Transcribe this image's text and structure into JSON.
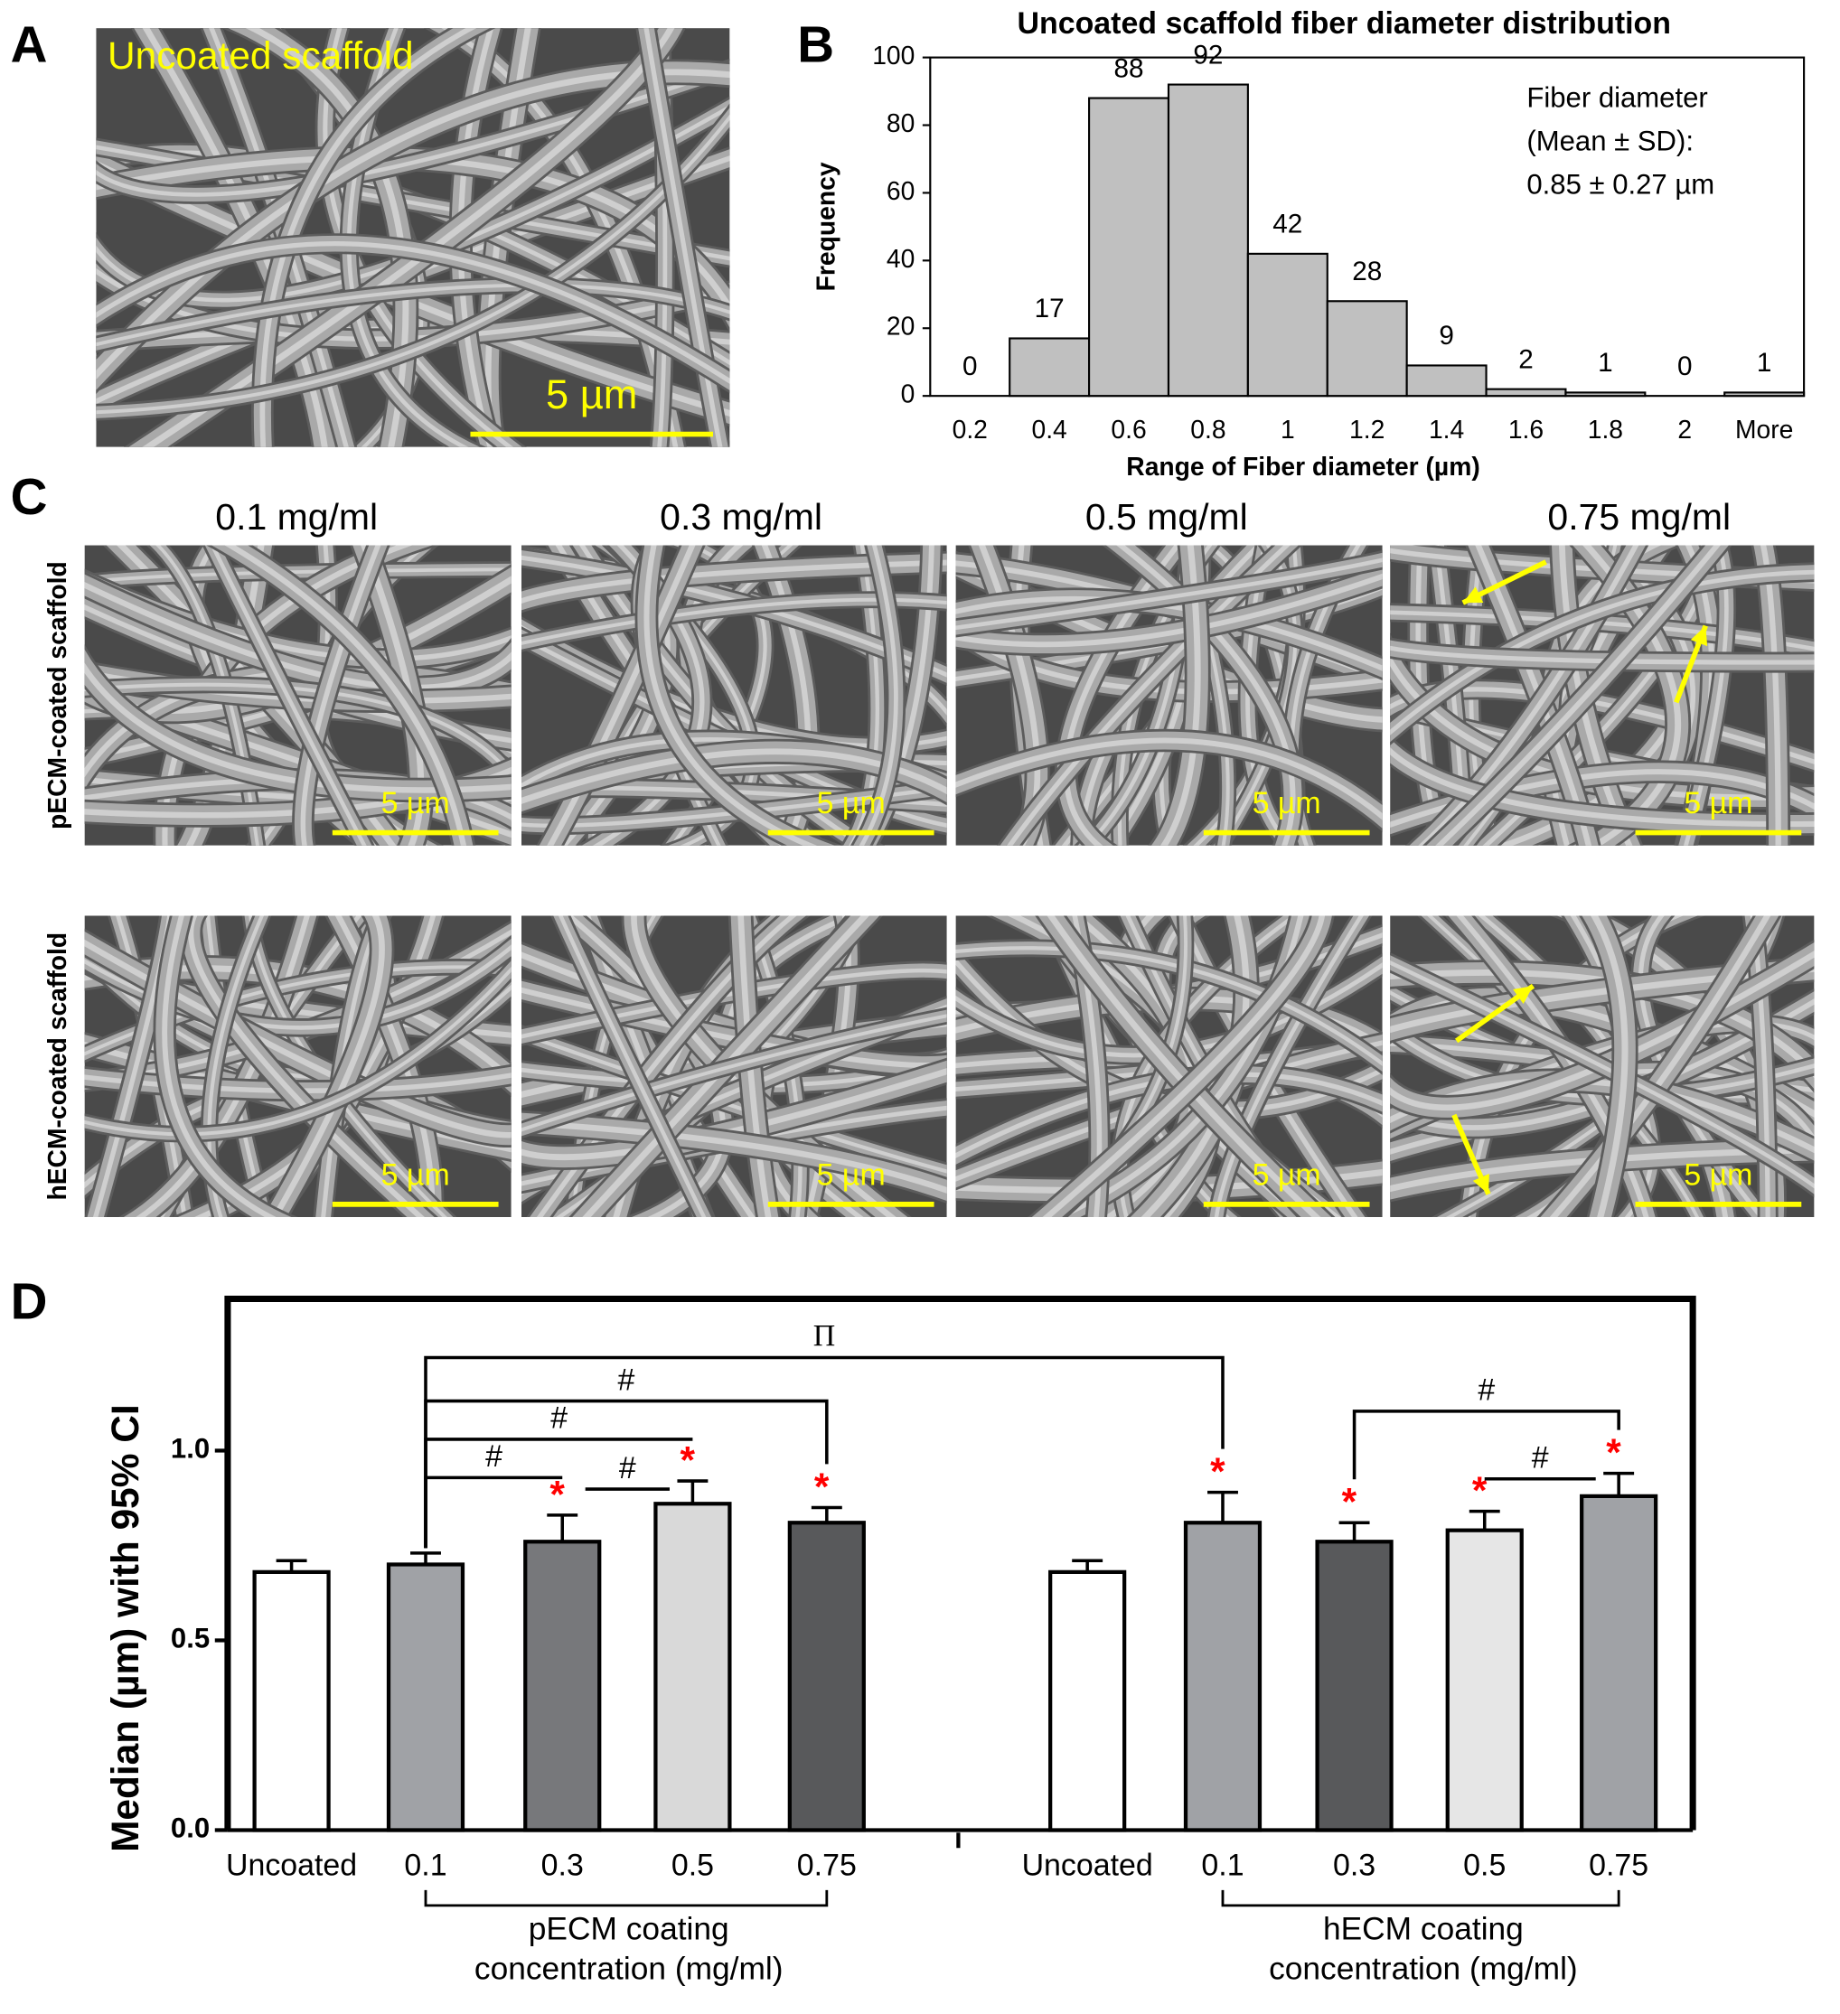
{
  "panels": {
    "A": {
      "letter": "A",
      "caption": "Uncoated scaffold",
      "scale_bar": "5 µm"
    },
    "B": {
      "letter": "B"
    },
    "C": {
      "letter": "C",
      "columns": [
        "0.1 mg/ml",
        "0.3 mg/ml",
        "0.5 mg/ml",
        "0.75 mg/ml"
      ],
      "rows": [
        "pECM-coated scaffold",
        "hECM-coated scaffold"
      ],
      "scale_bars": [
        [
          "5 µm",
          "5 µm",
          "5 µm",
          "5 µm"
        ],
        [
          "5 µm",
          "5 µm",
          "5 µm",
          "5 µm"
        ]
      ]
    },
    "D": {
      "letter": "D"
    }
  },
  "chart_data": [
    {
      "type": "bar",
      "title": "Uncoated scaffold fiber diameter distribution",
      "x_label": "Range of Fiber diameter (µm)",
      "y_label": "Frequency",
      "categories": [
        "0.2",
        "0.4",
        "0.6",
        "0.8",
        "1",
        "1.2",
        "1.4",
        "1.6",
        "1.8",
        "2",
        "More"
      ],
      "values": [
        0,
        17,
        88,
        92,
        42,
        28,
        9,
        2,
        1,
        0,
        1
      ],
      "color": "#c0c0c0",
      "edge_color": "#000000",
      "ylim": [
        0,
        100
      ],
      "yticks": [
        0,
        20,
        40,
        60,
        80,
        100
      ],
      "annotation": [
        "Fiber diameter",
        "(Mean ± SD):",
        "0.85 ± 0.27 µm"
      ]
    },
    {
      "type": "bar_error",
      "y_label": "Median (µm) with 95% CI",
      "categories": [
        "Uncoated",
        "0.1",
        "0.3",
        "0.5",
        "0.75",
        "Uncoated",
        "0.1",
        "0.3",
        "0.5",
        "0.75"
      ],
      "values": [
        0.68,
        0.7,
        0.76,
        0.86,
        0.81,
        0.68,
        0.81,
        0.76,
        0.79,
        0.88
      ],
      "errors": [
        0.03,
        0.03,
        0.07,
        0.06,
        0.04,
        0.03,
        0.08,
        0.05,
        0.05,
        0.06
      ],
      "colors": [
        "#ffffff",
        "#a0a2a6",
        "#77787b",
        "#d9d9d9",
        "#58595b",
        "#ffffff",
        "#a0a2a6",
        "#58595b",
        "#e6e6e6",
        "#a0a2a6"
      ],
      "star_labels": [
        null,
        null,
        "*",
        "*",
        "*",
        null,
        "*",
        "*",
        "*",
        "*"
      ],
      "star_color": "#ff0000",
      "ylim": [
        0,
        1.4
      ],
      "yticks": [
        {
          "value": 0,
          "label": "0.0"
        },
        0.5,
        {
          "value": 1,
          "label": "1.0"
        }
      ],
      "comparisons": [
        {
          "between": [
            1,
            6
          ],
          "label": "Π"
        },
        {
          "between": [
            1,
            4
          ],
          "label": "#"
        },
        {
          "between": [
            1,
            3
          ],
          "label": "#"
        },
        {
          "between": [
            1,
            2
          ],
          "label": "#"
        },
        {
          "between": [
            2,
            3
          ],
          "label": "#"
        },
        {
          "between": [
            7,
            9
          ],
          "label": "#"
        },
        {
          "between": [
            8,
            9
          ],
          "label": "#"
        }
      ],
      "group_labels": [
        [
          "pECM coating",
          "concentration (mg/ml)"
        ],
        [
          "hECM coating",
          "concentration (mg/ml)"
        ]
      ]
    }
  ]
}
